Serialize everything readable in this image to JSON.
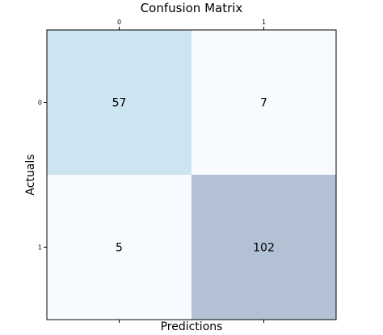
{
  "chart_data": {
    "type": "heatmap",
    "title": "Confusion Matrix",
    "xlabel": "Predictions",
    "ylabel": "Actuals",
    "x_categories": [
      "0",
      "1"
    ],
    "y_categories": [
      "0",
      "1"
    ],
    "xaxis_ticks_position": "top",
    "values": [
      [
        57,
        7
      ],
      [
        5,
        102
      ]
    ],
    "color_scale": {
      "min": 0,
      "max": 102,
      "low": "#f7fbff",
      "high": "#aabbcc"
    },
    "cell_colors": [
      [
        "#cde4f1",
        "#f7fbff"
      ],
      [
        "#f7fbff",
        "#b2c2d4"
      ]
    ],
    "grid": false
  }
}
